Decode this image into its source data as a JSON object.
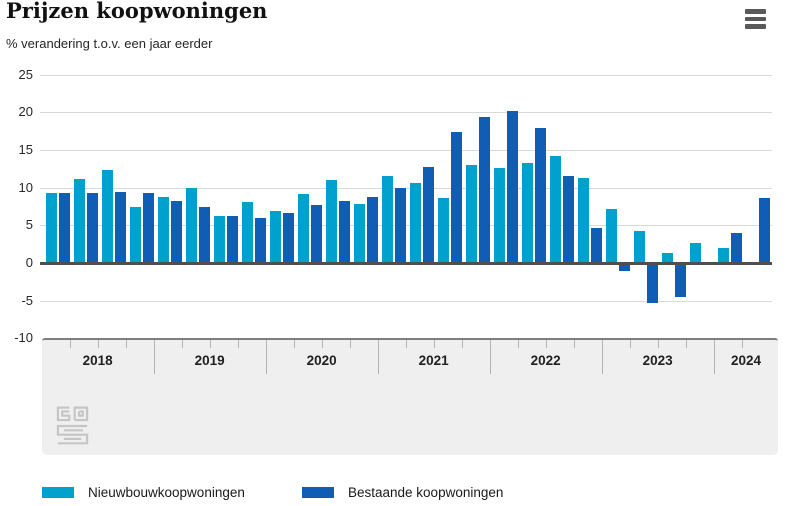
{
  "header": {
    "title": "Prijzen koopwoningen",
    "subtitle": "% verandering t.o.v. een jaar eerder"
  },
  "chart_data": {
    "type": "bar",
    "title": "Prijzen koopwoningen",
    "subtitle": "% verandering t.o.v. een jaar eerder",
    "unit": "%",
    "x": [
      "2018-K1",
      "2018-K2",
      "2018-K3",
      "2018-K4",
      "2019-K1",
      "2019-K2",
      "2019-K3",
      "2019-K4",
      "2020-K1",
      "2020-K2",
      "2020-K3",
      "2020-K4",
      "2021-K1",
      "2021-K2",
      "2021-K3",
      "2021-K4",
      "2022-K1",
      "2022-K2",
      "2022-K3",
      "2022-K4",
      "2023-K1",
      "2023-K2",
      "2023-K3",
      "2023-K4",
      "2024-K1",
      "2024-K2"
    ],
    "series": [
      {
        "name": "Nieuwbouwkoopwoningen",
        "color": "#00a1cd",
        "values": [
          9.3,
          11.1,
          12.3,
          7.4,
          8.8,
          10.0,
          6.3,
          8.1,
          6.9,
          9.2,
          11.0,
          7.8,
          11.5,
          10.7,
          8.7,
          13.0,
          12.6,
          13.3,
          14.2,
          11.3,
          7.2,
          4.2,
          1.4,
          2.7,
          2.0,
          null
        ]
      },
      {
        "name": "Bestaande koopwoningen",
        "color": "#0f5db4",
        "values": [
          9.3,
          9.3,
          9.4,
          9.3,
          8.2,
          7.4,
          6.3,
          6.0,
          6.7,
          7.7,
          8.2,
          8.8,
          10.0,
          12.8,
          17.4,
          19.4,
          20.2,
          18.0,
          11.6,
          4.7,
          -1.1,
          -5.3,
          -4.5,
          -0.3,
          4.0,
          8.7
        ]
      }
    ],
    "yticks": [
      25,
      20,
      15,
      10,
      5,
      0,
      -5,
      -10
    ],
    "ylim": [
      -10,
      25
    ],
    "grid": true,
    "x_axis_years": [
      "2018",
      "2019",
      "2020",
      "2021",
      "2022",
      "2023",
      "2024"
    ],
    "quarters_per_year": [
      4,
      4,
      4,
      4,
      4,
      4,
      2
    ],
    "legend_position": "bottom"
  },
  "legend": {
    "items": [
      {
        "label": "Nieuwbouwkoopwoningen",
        "color": "#00a1cd"
      },
      {
        "label": "Bestaande koopwoningen",
        "color": "#0f5db4"
      }
    ]
  }
}
